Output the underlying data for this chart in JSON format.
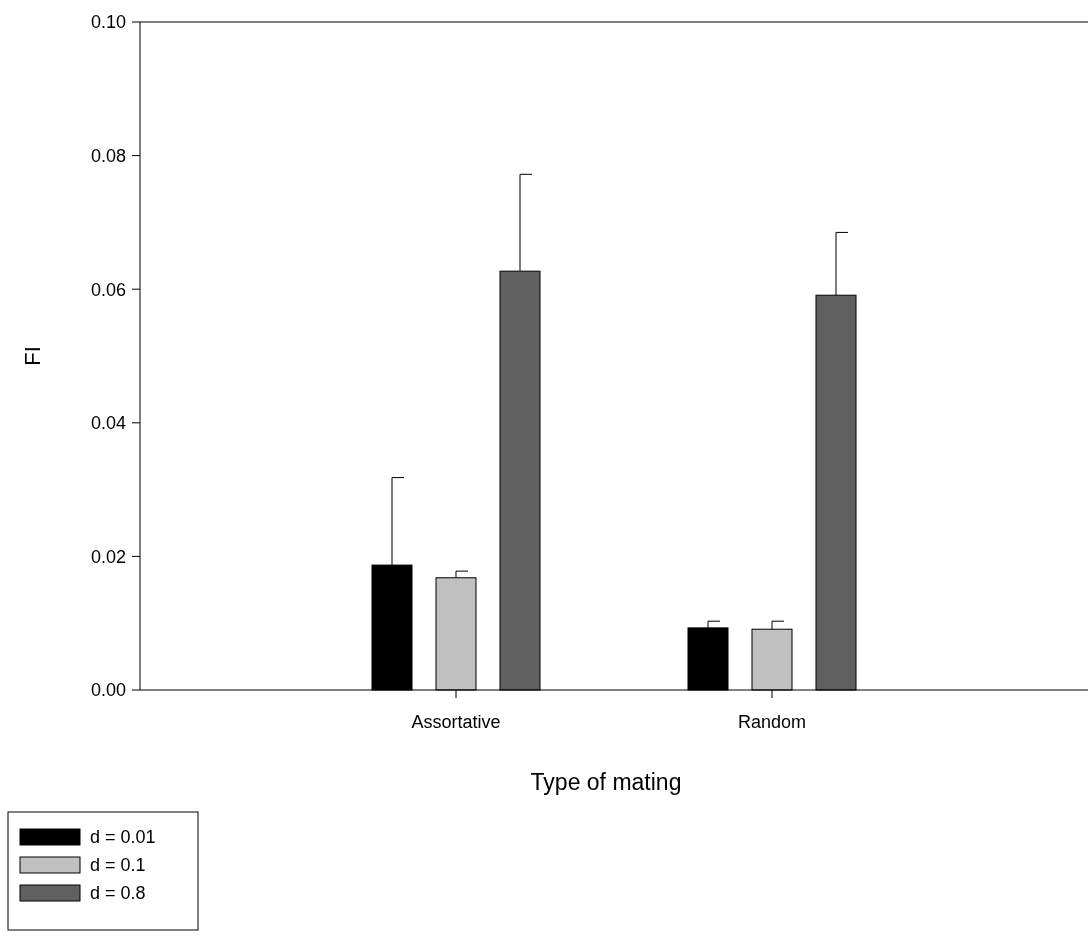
{
  "chart_data": {
    "type": "bar",
    "xlabel": "Type of mating",
    "ylabel": "FI",
    "categories": [
      "Assortative",
      "Random"
    ],
    "series": [
      {
        "name": "d = 0.01",
        "color": "#000000",
        "values": [
          0.0187,
          0.0093
        ],
        "errors": [
          [
            0.0187,
            0.0318
          ],
          [
            0.0093,
            0.0103
          ]
        ]
      },
      {
        "name": "d = 0.1",
        "color": "#c0c0c0",
        "values": [
          0.0168,
          0.0091
        ],
        "errors": [
          [
            0.0168,
            0.0178
          ],
          [
            0.0091,
            0.0103
          ]
        ]
      },
      {
        "name": "d = 0.8",
        "color": "#606060",
        "values": [
          0.0627,
          0.0591
        ],
        "errors": [
          [
            0.0627,
            0.0772
          ],
          [
            0.0591,
            0.0685
          ]
        ]
      }
    ],
    "ylim": [
      0,
      0.1
    ],
    "yticks": [
      {
        "value": 0,
        "label": "0.00"
      },
      {
        "value": 0.02,
        "label": "0.02"
      },
      {
        "value": 0.04,
        "label": "0.04"
      },
      {
        "value": 0.06,
        "label": "0.06"
      },
      {
        "value": 0.08,
        "label": "0.08"
      },
      {
        "value": 0.1,
        "label": "0.10"
      }
    ],
    "legend": "bottom left",
    "grid": false
  }
}
